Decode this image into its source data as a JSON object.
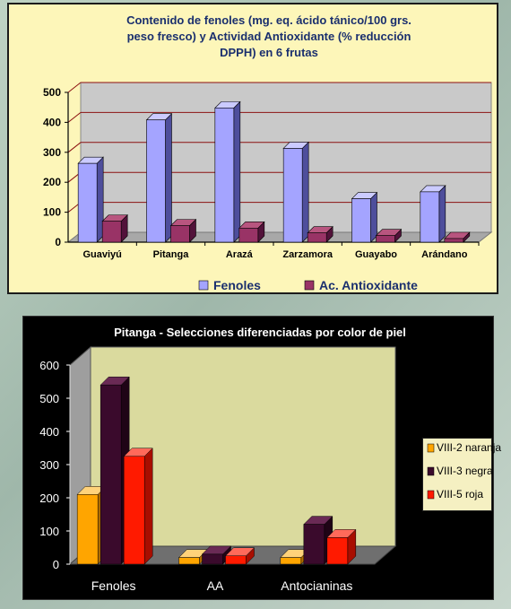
{
  "chart_data": [
    {
      "type": "bar",
      "title": "Contenido de fenoles (mg. eq. ácido tánico/100 grs. peso fresco) y Actividad Antioxidante (% reducción DPPH) en 6 frutas",
      "title_lines": [
        "Contenido de fenoles (mg. eq. ácido tánico/100 grs.",
        "peso fresco) y Actividad Antioxidante (% reducción",
        "DPPH) en 6 frutas"
      ],
      "categories": [
        "Guaviyú",
        "Pitanga",
        "Arazá",
        "Zarzamora",
        "Guayabo",
        "Arándano"
      ],
      "series": [
        {
          "name": "Fenoles",
          "values": [
            263,
            408,
            448,
            313,
            145,
            168
          ]
        },
        {
          "name": "Ac. Antioxidante",
          "values": [
            70,
            55,
            47,
            31,
            22,
            12
          ]
        }
      ],
      "ylim": [
        0,
        500
      ],
      "yticks": [
        0,
        100,
        200,
        300,
        400,
        500
      ],
      "colors": {
        "front": [
          "#a4a4ff",
          "#993366"
        ],
        "side": [
          "#4e4e9c",
          "#52123a"
        ],
        "top": [
          "#cbcbff",
          "#b8557f"
        ]
      },
      "grid": true,
      "grid_color": "#8b1010",
      "legend_position": "bottom",
      "background": "#fdf6b9",
      "plot_wall": "#c9c9c9"
    },
    {
      "type": "bar",
      "title": "Pitanga - Selecciones diferenciadas por color de piel",
      "categories": [
        "Fenoles",
        "AA",
        "Antocianinas"
      ],
      "series": [
        {
          "name": "VIII-2 naranja",
          "values": [
            210,
            20,
            20
          ]
        },
        {
          "name": "VIII-3 negra",
          "values": [
            540,
            30,
            120
          ]
        },
        {
          "name": "VIII-5 roja",
          "values": [
            325,
            25,
            80
          ]
        }
      ],
      "ylim": [
        0,
        600
      ],
      "yticks": [
        0,
        100,
        200,
        300,
        400,
        500,
        600
      ],
      "colors": {
        "front": [
          "#ffa500",
          "#3a0a2c",
          "#ff1a00"
        ],
        "side": [
          "#b16d00",
          "#1f0416",
          "#a80e00"
        ],
        "top": [
          "#ffd27a",
          "#6a2a55",
          "#ff6a5a"
        ]
      },
      "grid": false,
      "legend_position": "right",
      "background": "#000000",
      "plot_wall": "#dada9e"
    }
  ]
}
